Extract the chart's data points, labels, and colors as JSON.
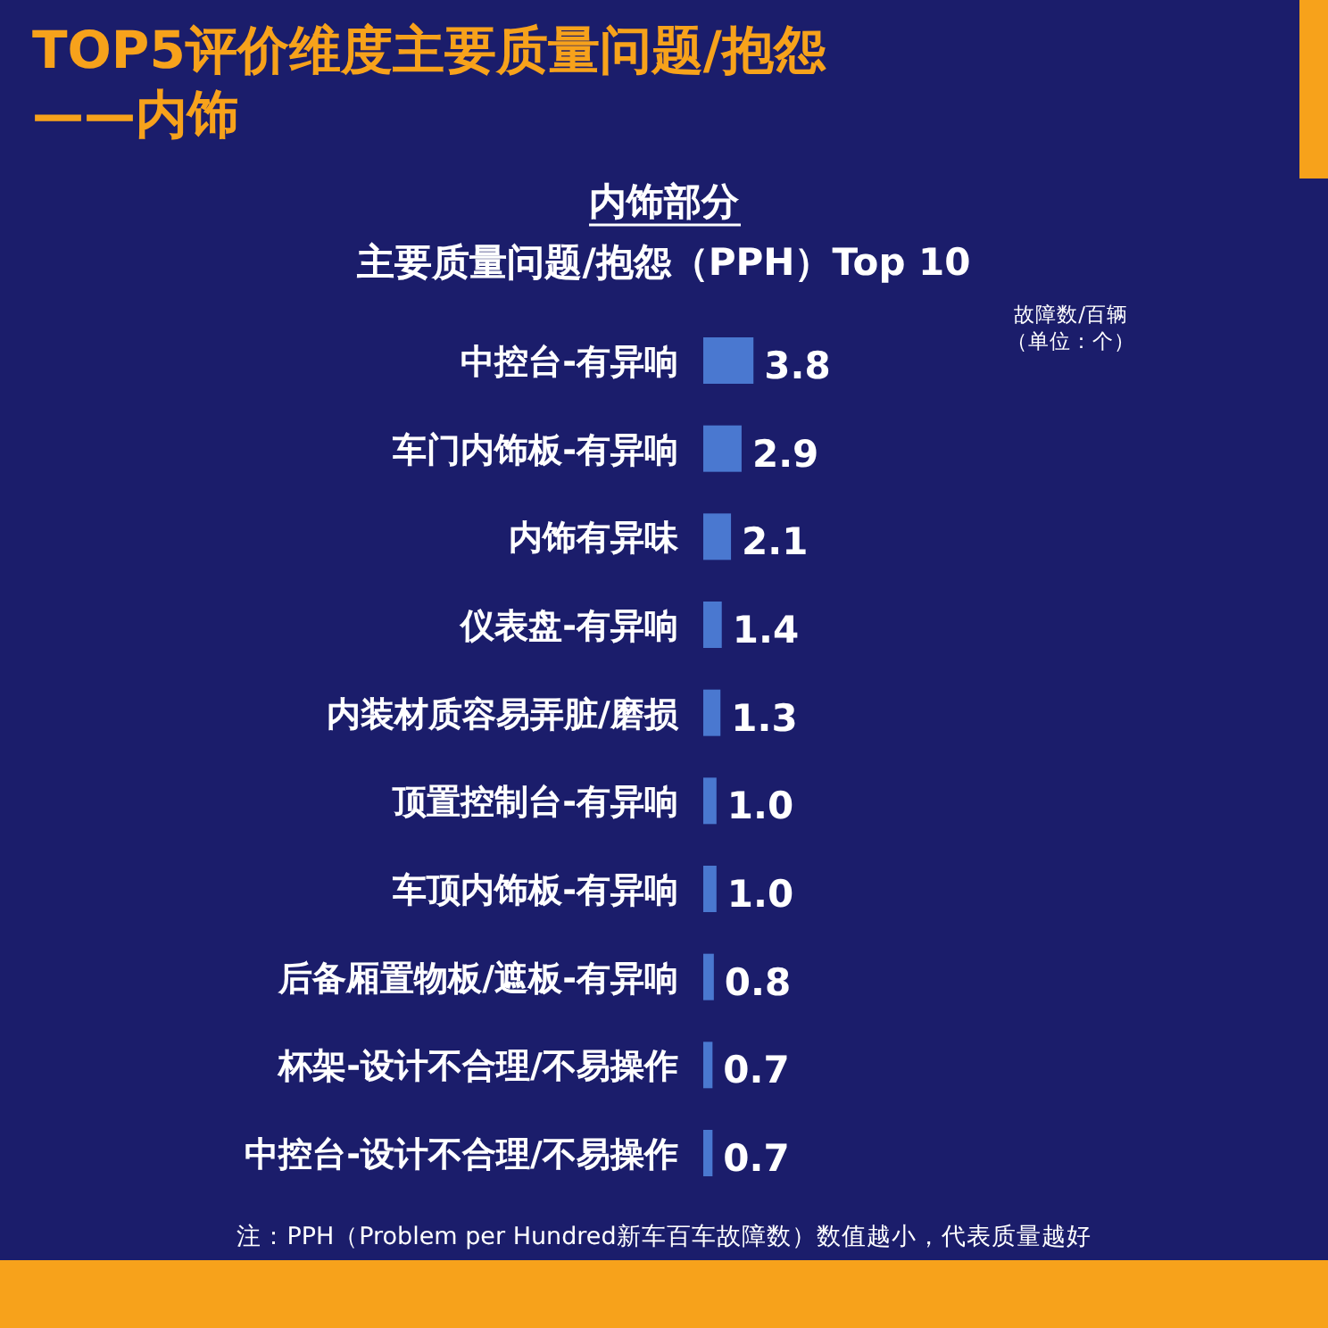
{
  "chart_data": {
    "type": "bar",
    "orientation": "horizontal",
    "title": "TOP5评价维度主要质量问题/抱怨——内饰",
    "subtitle": "内饰部分",
    "annotations": [
      "主要质量问题/抱怨（PPH）Top 10",
      "注：PPH（Problem per Hundred新车百车故障数）数值越小，代表质量越好",
      "故障数/百辆（单位：个）"
    ],
    "categories": [
      "中控台-有异响",
      "车门内饰板-有异响",
      "内饰有异味",
      "仪表盘-有异响",
      "内装材质容易弄脏/磨损",
      "顶置控制台-有异响",
      "车顶内饰板-有异响",
      "后备厢置物板/遮板-有异响",
      "杯架-设计不合理/不易操作",
      "中控台-设计不合理/不易操作"
    ],
    "values": [
      3.8,
      2.9,
      2.1,
      1.4,
      1.3,
      1.0,
      1.0,
      0.8,
      0.7,
      0.7
    ],
    "value_labels": [
      "3.8",
      "2.9",
      "2.1",
      "1.4",
      "1.3",
      "1.0",
      "1.0",
      "0.8",
      "0.7",
      "0.7"
    ],
    "color": "#4a78d0"
  }
}
